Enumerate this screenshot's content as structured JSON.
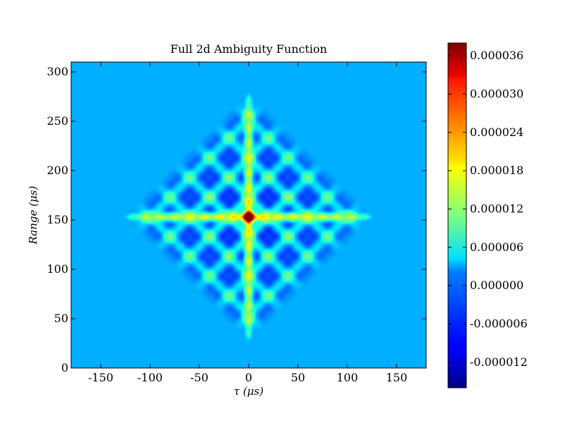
{
  "chart_data": {
    "type": "heatmap",
    "title": "Full 2d Ambiguity Function",
    "xlabel": "τ (μs)",
    "ylabel": "Range (μs)",
    "xlim": [
      -180,
      180
    ],
    "ylim": [
      0,
      310
    ],
    "xticks": [
      -150,
      -100,
      -50,
      0,
      50,
      100,
      150
    ],
    "yticks": [
      0,
      50,
      100,
      150,
      200,
      250,
      300
    ],
    "colormap": "jet",
    "background_color": "#00BFFF",
    "colorbar": {
      "vmin": -1.6e-05,
      "vmax": 3.8e-05,
      "ticks": [
        {
          "value": 3.6e-05,
          "label": "0.000036"
        },
        {
          "value": 3e-05,
          "label": "0.000030"
        },
        {
          "value": 2.4e-05,
          "label": "0.000024"
        },
        {
          "value": 1.8e-05,
          "label": "0.000018"
        },
        {
          "value": 1.2e-05,
          "label": "0.000012"
        },
        {
          "value": 6e-06,
          "label": "0.000006"
        },
        {
          "value": 0.0,
          "label": "0.000000"
        },
        {
          "value": -6e-06,
          "label": "-0.000006"
        },
        {
          "value": -1.2e-05,
          "label": "-0.000012"
        }
      ]
    },
    "surface": {
      "center": [
        0,
        153
      ],
      "half_width_tau": 122,
      "half_height_range": 122,
      "peak_value": 3.8e-05,
      "ridge_tau_value": 2.2e-05,
      "ridge_range_value": 2.2e-05
    }
  }
}
